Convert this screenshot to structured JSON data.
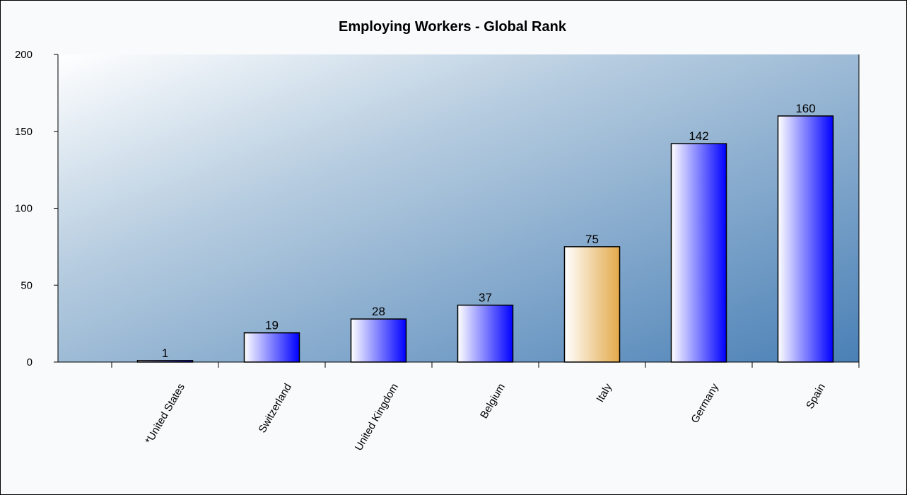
{
  "chart_data": {
    "type": "bar",
    "title": "Employing Workers - Global Rank",
    "categories": [
      "*United States",
      "Switzerland",
      "United Kingdom",
      "Belgium",
      "Italy",
      "Germany",
      "Spain"
    ],
    "values": [
      1,
      19,
      28,
      37,
      75,
      142,
      160
    ],
    "colors": [
      "#0000ff",
      "#0000ff",
      "#0000ff",
      "#0000ff",
      "#e3a94a",
      "#0000ff",
      "#0000ff"
    ],
    "ylim": [
      0,
      200
    ],
    "yticks": [
      0,
      50,
      100,
      150,
      200
    ]
  }
}
